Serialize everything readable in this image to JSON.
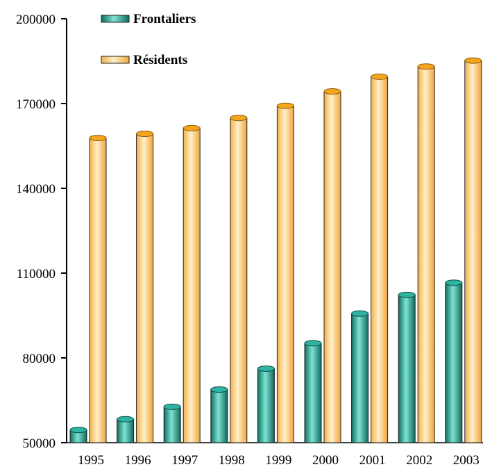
{
  "chart_data": {
    "type": "bar",
    "categories": [
      "1995",
      "1996",
      "1997",
      "1998",
      "1999",
      "2000",
      "2001",
      "2002",
      "2003"
    ],
    "series": [
      {
        "name": "Frontaliers",
        "values": [
          54500,
          58300,
          62700,
          68800,
          76200,
          85200,
          95700,
          102300,
          106600
        ],
        "color": "#1fa090"
      },
      {
        "name": "Résidents",
        "values": [
          157800,
          159300,
          161300,
          164900,
          169200,
          174300,
          179500,
          183100,
          185200
        ],
        "color": "#f5a51a"
      }
    ],
    "y_ticks": [
      "50000",
      "80000",
      "110000",
      "140000",
      "170000",
      "200000"
    ],
    "ylim": [
      50000,
      200000
    ],
    "grid": false,
    "legend_position": "top-left",
    "style": "3d-cylinder"
  }
}
